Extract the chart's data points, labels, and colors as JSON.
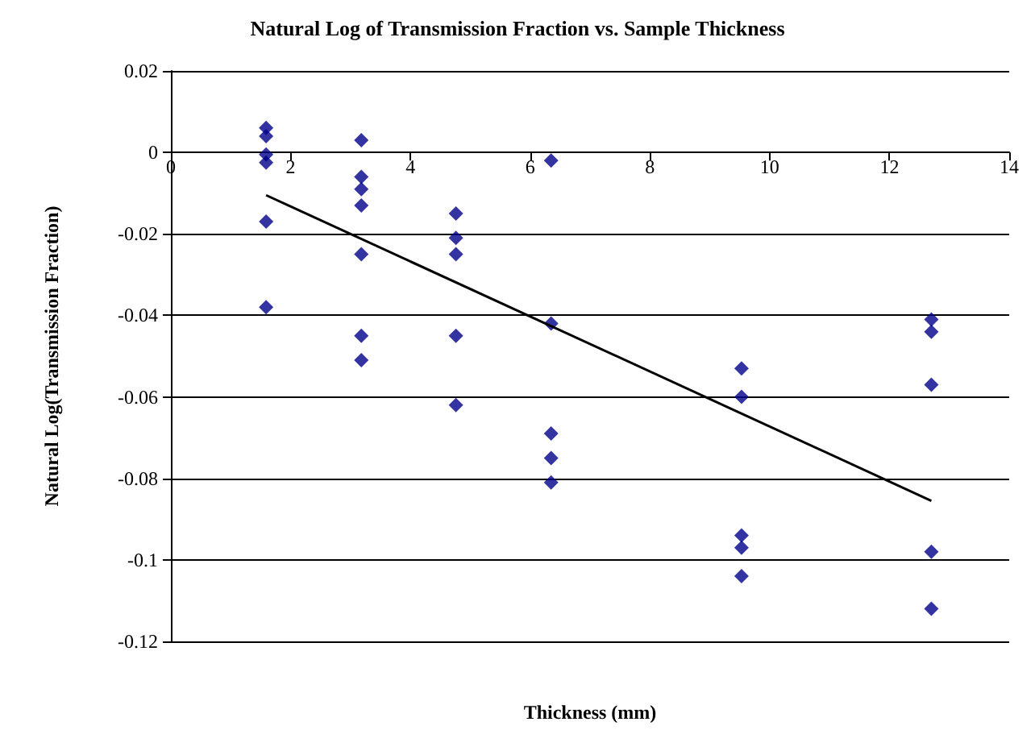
{
  "chart_data": {
    "type": "scatter",
    "title": "Natural Log of Transmission Fraction vs. Sample Thickness",
    "xlabel": "Thickness (mm)",
    "ylabel": "Natural Log(Transmission Fraction)",
    "series": [
      {
        "type": "scatter",
        "color": "#00008b",
        "marker": "diamond",
        "x": [
          1.59,
          1.59,
          1.59,
          1.59,
          1.59,
          1.59,
          3.18,
          3.18,
          3.18,
          3.18,
          3.18,
          3.18,
          3.18,
          4.76,
          4.76,
          4.76,
          4.76,
          4.76,
          6.35,
          6.35,
          6.35,
          6.35,
          6.35,
          9.53,
          9.53,
          9.53,
          9.53,
          9.53,
          12.7,
          12.7,
          12.7,
          12.7,
          12.7
        ],
        "values": [
          0.006,
          0.004,
          -0.0005,
          -0.0025,
          -0.017,
          -0.038,
          0.003,
          -0.006,
          -0.009,
          -0.013,
          -0.025,
          -0.045,
          -0.051,
          -0.015,
          -0.021,
          -0.025,
          -0.045,
          -0.062,
          -0.002,
          -0.042,
          -0.069,
          -0.075,
          -0.081,
          -0.053,
          -0.06,
          -0.094,
          -0.097,
          -0.104,
          -0.041,
          -0.044,
          -0.057,
          -0.098,
          -0.112
        ]
      },
      {
        "type": "line",
        "color": "#000000",
        "marker": "none",
        "x": [
          1.59,
          12.7
        ],
        "values": [
          -0.0105,
          -0.0855
        ]
      }
    ],
    "xlim": [
      0,
      14
    ],
    "xticks": [
      0,
      2,
      4,
      6,
      8,
      10,
      12,
      14
    ],
    "ylim": [
      -0.12,
      0.02
    ],
    "yticks": [
      -0.12,
      -0.1,
      -0.08,
      -0.06,
      -0.04,
      -0.02,
      0,
      0.02
    ],
    "grid": "y"
  }
}
